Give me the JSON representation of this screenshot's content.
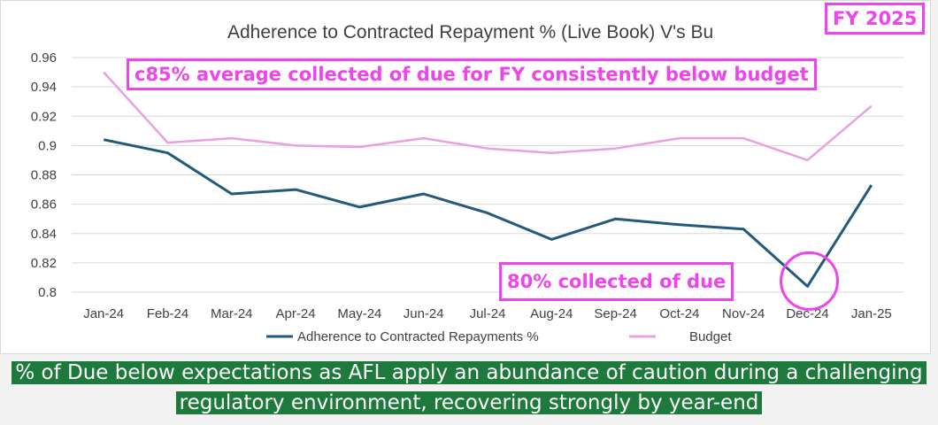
{
  "chart_data": {
    "type": "line",
    "title": "Adherence to Contracted Repayment % (Live Book) V's Bu",
    "categories": [
      "Jan-24",
      "Feb-24",
      "Mar-24",
      "Apr-24",
      "May-24",
      "Jun-24",
      "Jul-24",
      "Aug-24",
      "Sep-24",
      "Oct-24",
      "Nov-24",
      "Dec-24",
      "Jan-25"
    ],
    "series": [
      {
        "name": "Adherence to Contracted Repayments %",
        "color": "#215a7a",
        "values": [
          0.904,
          0.895,
          0.867,
          0.87,
          0.858,
          0.867,
          0.854,
          0.836,
          0.85,
          0.846,
          0.843,
          0.804,
          0.873
        ]
      },
      {
        "name": "Budget",
        "color": "#e8a0e0",
        "values": [
          0.95,
          0.902,
          0.905,
          0.9,
          0.899,
          0.905,
          0.898,
          0.895,
          0.898,
          0.905,
          0.905,
          0.89,
          0.927
        ]
      }
    ],
    "y_ticks": [
      "0.8",
      "0.82",
      "0.84",
      "0.86",
      "0.88",
      "0.9",
      "0.92",
      "0.94",
      "0.96"
    ],
    "ylim": [
      0.8,
      0.96
    ],
    "grid": true,
    "legend_position": "bottom",
    "highlight_category": "Dec-24"
  },
  "annotations": {
    "fy_badge": "FY 2025",
    "average_note": "c85% average collected of due for FY consistently below budget",
    "dec_note": "80% collected of due",
    "accent_color": "#ee44ee"
  },
  "banner": {
    "text": "% of Due below expectations as AFL apply an abundance of caution during a challenging regulatory environment, recovering strongly by year-end",
    "bg_color": "#1e7a3c"
  }
}
